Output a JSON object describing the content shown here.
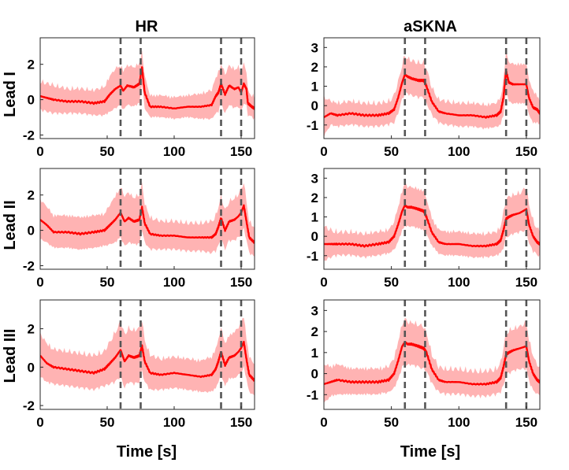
{
  "chart_data": {
    "type": "line",
    "title": "",
    "column_titles": [
      "HR",
      "aSKNA"
    ],
    "row_labels": [
      "Lead I",
      "Lead II",
      "Lead III"
    ],
    "xlabel": "Time [s]",
    "xlim": [
      0,
      160
    ],
    "xticks": [
      0,
      50,
      100,
      150
    ],
    "event_lines": [
      60,
      75,
      135,
      150
    ],
    "colors": {
      "line": "#ff0000",
      "band": "#ffb3b3",
      "event": "#555555"
    },
    "panels": [
      {
        "id": "hr-lead-1",
        "signal": "HR",
        "lead": "Lead I",
        "ylim": [
          -2.2,
          3.5
        ],
        "yticks": [
          -2,
          0,
          2
        ],
        "series": [
          {
            "name": "mean",
            "x": [
              0,
              5,
              10,
              20,
              30,
              40,
              48,
              52,
              56,
              60,
              62,
              65,
              70,
              74,
              76,
              78,
              82,
              90,
              100,
              110,
              120,
              128,
              131,
              133,
              135,
              138,
              141,
              145,
              148,
              150,
              152,
              154,
              155,
              158,
              160
            ],
            "y": [
              0.2,
              0.1,
              0,
              -0.1,
              -0.1,
              -0.2,
              -0.1,
              0.3,
              0.6,
              0.8,
              0.5,
              0.8,
              0.7,
              0.9,
              1.8,
              0.4,
              -0.4,
              -0.4,
              -0.5,
              -0.4,
              -0.4,
              -0.3,
              0.2,
              0.4,
              0.9,
              0.3,
              0.8,
              0.6,
              0.7,
              0.4,
              0.9,
              0.6,
              -0.2,
              -0.4,
              -0.5
            ],
            "band": [
              0.7,
              0.7,
              0.7,
              0.6,
              0.6,
              0.6,
              0.7,
              0.9,
              1.0,
              1.0,
              1.0,
              1.0,
              1.0,
              1.0,
              0.8,
              0.8,
              0.5,
              0.5,
              0.5,
              0.5,
              0.6,
              0.7,
              0.9,
              1.0,
              1.0,
              1.0,
              1.0,
              1.0,
              1.0,
              1.0,
              1.0,
              0.9,
              0.6,
              0.5,
              0.5
            ]
          }
        ]
      },
      {
        "id": "askna-lead-1",
        "signal": "aSKNA",
        "lead": "Lead I",
        "ylim": [
          -1.7,
          3.5
        ],
        "yticks": [
          -1,
          0,
          1,
          2,
          3
        ],
        "series": [
          {
            "name": "mean",
            "x": [
              0,
              5,
              10,
              20,
              30,
              40,
              48,
              52,
              55,
              58,
              60,
              62,
              65,
              70,
              74,
              76,
              80,
              85,
              90,
              100,
              110,
              120,
              128,
              131,
              133,
              135,
              137,
              140,
              145,
              150,
              152,
              155,
              158,
              160
            ],
            "y": [
              -0.6,
              -0.4,
              -0.5,
              -0.4,
              -0.5,
              -0.5,
              -0.4,
              -0.2,
              0.4,
              1.2,
              1.6,
              1.5,
              1.4,
              1.3,
              1.3,
              1.0,
              0.2,
              -0.3,
              -0.4,
              -0.5,
              -0.5,
              -0.6,
              -0.5,
              -0.3,
              0.4,
              1.8,
              1.2,
              1.1,
              1.1,
              1.1,
              0.4,
              -0.1,
              -0.2,
              -0.4
            ],
            "band": [
              0.9,
              0.5,
              0.5,
              0.5,
              0.5,
              0.5,
              0.5,
              0.6,
              0.7,
              0.8,
              0.9,
              0.8,
              0.8,
              0.8,
              0.8,
              0.8,
              0.6,
              0.5,
              0.5,
              0.5,
              0.5,
              0.5,
              0.5,
              0.6,
              0.8,
              0.9,
              0.9,
              0.9,
              0.9,
              0.9,
              0.8,
              0.7,
              0.6,
              0.5
            ]
          }
        ]
      },
      {
        "id": "hr-lead-2",
        "signal": "HR",
        "lead": "Lead II",
        "ylim": [
          -2.2,
          3.5
        ],
        "yticks": [
          -2,
          0,
          2
        ],
        "series": [
          {
            "name": "mean",
            "x": [
              0,
              5,
              10,
              20,
              30,
              40,
              48,
              52,
              56,
              60,
              63,
              66,
              70,
              74,
              76,
              78,
              82,
              90,
              100,
              110,
              120,
              128,
              131,
              133,
              135,
              138,
              141,
              145,
              148,
              150,
              152,
              154,
              156,
              160
            ],
            "y": [
              0.6,
              0.3,
              -0.1,
              -0.1,
              -0.2,
              -0.1,
              0.0,
              0.3,
              0.6,
              1.0,
              0.5,
              0.7,
              0.5,
              0.6,
              1.3,
              0.4,
              -0.2,
              -0.3,
              -0.3,
              -0.4,
              -0.4,
              -0.4,
              -0.2,
              0.2,
              0.7,
              0.0,
              0.5,
              0.6,
              0.8,
              1.0,
              1.4,
              0.5,
              -0.4,
              -0.7
            ],
            "band": [
              1.0,
              0.9,
              0.8,
              0.8,
              0.8,
              0.8,
              0.8,
              1.0,
              1.2,
              1.3,
              1.3,
              1.3,
              1.2,
              1.3,
              1.2,
              1.0,
              0.8,
              0.7,
              0.7,
              0.7,
              0.7,
              0.8,
              0.9,
              1.0,
              1.1,
              1.0,
              1.0,
              1.1,
              1.1,
              1.2,
              1.2,
              1.0,
              0.8,
              0.7
            ]
          }
        ]
      },
      {
        "id": "askna-lead-2",
        "signal": "aSKNA",
        "lead": "Lead II",
        "ylim": [
          -1.7,
          3.5
        ],
        "yticks": [
          -1,
          0,
          1,
          2,
          3
        ],
        "series": [
          {
            "name": "mean",
            "x": [
              0,
              5,
              10,
              20,
              30,
              40,
              48,
              52,
              55,
              58,
              60,
              62,
              65,
              70,
              74,
              76,
              80,
              85,
              90,
              100,
              110,
              120,
              128,
              131,
              133,
              135,
              137,
              140,
              145,
              150,
              152,
              155,
              158,
              160
            ],
            "y": [
              -0.4,
              -0.4,
              -0.4,
              -0.4,
              -0.5,
              -0.4,
              -0.3,
              0.0,
              0.6,
              1.3,
              1.6,
              1.5,
              1.5,
              1.4,
              1.3,
              1.0,
              0.2,
              -0.3,
              -0.4,
              -0.4,
              -0.5,
              -0.5,
              -0.4,
              -0.2,
              0.3,
              0.9,
              1.0,
              1.1,
              1.2,
              1.4,
              0.6,
              0.0,
              -0.3,
              -0.4
            ],
            "band": [
              0.8,
              0.6,
              0.5,
              0.5,
              0.5,
              0.5,
              0.5,
              0.6,
              0.8,
              0.9,
              1.0,
              0.9,
              0.9,
              0.9,
              0.9,
              0.8,
              0.6,
              0.5,
              0.5,
              0.5,
              0.5,
              0.5,
              0.5,
              0.6,
              0.8,
              0.9,
              0.9,
              0.9,
              0.9,
              1.0,
              0.9,
              0.7,
              0.6,
              0.5
            ]
          }
        ]
      },
      {
        "id": "hr-lead-3",
        "signal": "HR",
        "lead": "Lead III",
        "ylim": [
          -2.2,
          3.5
        ],
        "yticks": [
          -2,
          0,
          2
        ],
        "series": [
          {
            "name": "mean",
            "x": [
              0,
              5,
              10,
              20,
              30,
              40,
              48,
              52,
              56,
              60,
              63,
              66,
              70,
              74,
              76,
              78,
              82,
              90,
              100,
              110,
              120,
              128,
              131,
              133,
              135,
              138,
              141,
              145,
              148,
              150,
              152,
              154,
              156,
              160
            ],
            "y": [
              0.6,
              0.2,
              0.0,
              -0.1,
              -0.2,
              -0.3,
              -0.1,
              0.2,
              0.5,
              0.9,
              0.3,
              0.6,
              0.5,
              0.6,
              1.1,
              0.3,
              -0.3,
              -0.4,
              -0.3,
              -0.4,
              -0.5,
              -0.4,
              -0.1,
              0.3,
              0.8,
              0.1,
              0.5,
              0.6,
              0.8,
              1.0,
              1.3,
              0.4,
              -0.4,
              -0.7
            ],
            "band": [
              1.0,
              0.9,
              0.8,
              0.8,
              0.8,
              0.8,
              0.8,
              1.0,
              1.2,
              1.3,
              1.3,
              1.3,
              1.3,
              1.3,
              1.2,
              1.0,
              0.8,
              0.7,
              0.7,
              0.7,
              0.7,
              0.8,
              0.9,
              1.0,
              1.1,
              1.0,
              1.0,
              1.1,
              1.1,
              1.2,
              1.2,
              1.0,
              0.8,
              0.7
            ]
          }
        ]
      },
      {
        "id": "askna-lead-3",
        "signal": "aSKNA",
        "lead": "Lead III",
        "ylim": [
          -1.7,
          3.5
        ],
        "yticks": [
          -1,
          0,
          1,
          2,
          3
        ],
        "series": [
          {
            "name": "mean",
            "x": [
              0,
              5,
              10,
              20,
              30,
              40,
              48,
              52,
              55,
              58,
              60,
              62,
              65,
              70,
              74,
              76,
              80,
              85,
              90,
              100,
              110,
              120,
              128,
              131,
              133,
              135,
              137,
              140,
              145,
              150,
              152,
              155,
              158,
              160
            ],
            "y": [
              -0.5,
              -0.4,
              -0.3,
              -0.4,
              -0.4,
              -0.4,
              -0.3,
              0.0,
              0.6,
              1.3,
              1.5,
              1.4,
              1.4,
              1.3,
              1.2,
              1.0,
              0.2,
              -0.3,
              -0.4,
              -0.4,
              -0.5,
              -0.5,
              -0.4,
              -0.2,
              0.3,
              0.9,
              1.0,
              1.1,
              1.2,
              1.3,
              0.6,
              0.0,
              -0.3,
              -0.4
            ],
            "band": [
              0.8,
              0.6,
              0.6,
              0.5,
              0.5,
              0.5,
              0.5,
              0.6,
              0.8,
              0.9,
              1.0,
              0.9,
              0.9,
              0.9,
              0.9,
              0.8,
              0.6,
              0.5,
              0.5,
              0.5,
              0.5,
              0.5,
              0.5,
              0.6,
              0.8,
              0.9,
              0.9,
              0.9,
              0.9,
              1.0,
              0.9,
              0.7,
              0.6,
              0.5
            ]
          }
        ]
      }
    ]
  }
}
